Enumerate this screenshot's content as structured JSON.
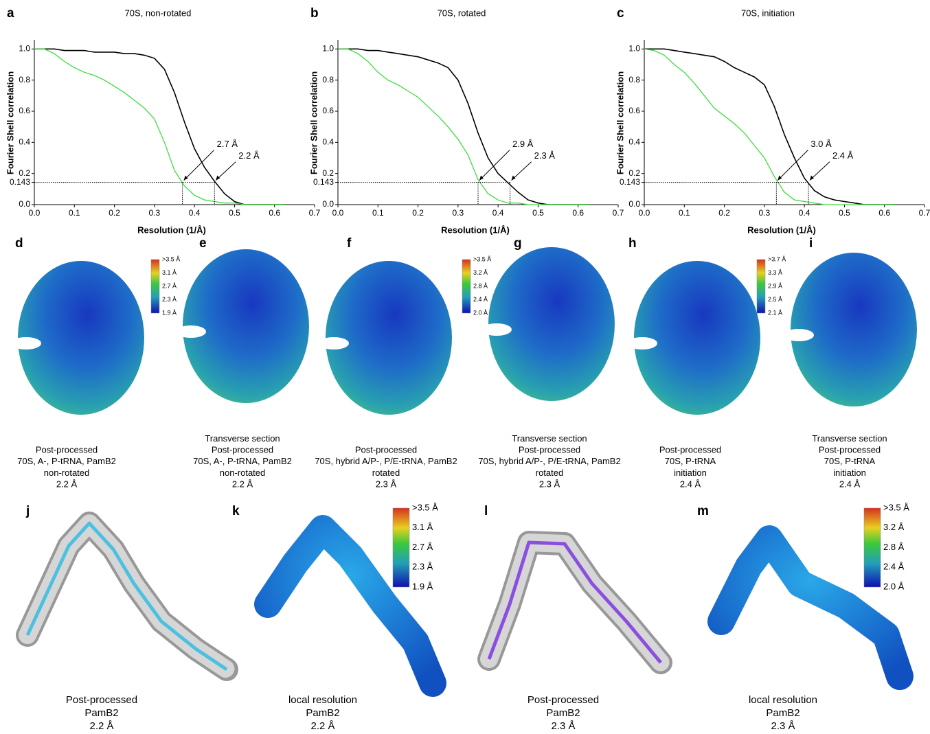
{
  "chart_data": [
    {
      "type": "line",
      "panel": "a",
      "title": "70S, non-rotated",
      "xlabel": "Resolution (1/Å)",
      "ylabel": "Fourier Shell correlation",
      "x": [
        0,
        0.025,
        0.05,
        0.075,
        0.1,
        0.125,
        0.15,
        0.175,
        0.2,
        0.225,
        0.25,
        0.275,
        0.3,
        0.325,
        0.35,
        0.375,
        0.4,
        0.425,
        0.45,
        0.475,
        0.5,
        0.525,
        0.55,
        0.575,
        0.6,
        0.625
      ],
      "series": [
        {
          "color": "#000000",
          "values": [
            1,
            1,
            1,
            0.99,
            0.99,
            0.99,
            0.98,
            0.98,
            0.98,
            0.97,
            0.97,
            0.96,
            0.94,
            0.87,
            0.72,
            0.53,
            0.36,
            0.24,
            0.15,
            0.07,
            0.02,
            0,
            0,
            0,
            0,
            0
          ]
        },
        {
          "color": "#3ddc3d",
          "values": [
            1,
            1,
            0.97,
            0.92,
            0.88,
            0.85,
            0.83,
            0.8,
            0.76,
            0.72,
            0.67,
            0.62,
            0.55,
            0.4,
            0.22,
            0.12,
            0.06,
            0.03,
            0.02,
            0.01,
            0.01,
            0,
            0,
            0,
            0,
            0
          ]
        }
      ],
      "threshold": 0.143,
      "annotations": [
        {
          "text": "2.7 Å",
          "x": 0.37
        },
        {
          "text": "2.2 Å",
          "x": 0.45
        }
      ],
      "xlim": [
        0,
        0.7
      ],
      "ylim": [
        0,
        1.05
      ],
      "xticks": [
        {
          "value": 0,
          "label": "0.0"
        },
        0.1,
        0.2,
        0.3,
        0.4,
        0.5,
        0.6,
        0.7
      ],
      "yticks": [
        {
          "value": 0,
          "label": "0.0"
        },
        0.143,
        0.2,
        0.4,
        0.6,
        0.8,
        {
          "value": 1,
          "label": "1.0"
        }
      ]
    },
    {
      "type": "line",
      "panel": "b",
      "title": "70S, rotated",
      "xlabel": "Resolution (1/Å)",
      "ylabel": "Fourier Shell correlation",
      "x": [
        0,
        0.025,
        0.05,
        0.075,
        0.1,
        0.125,
        0.15,
        0.175,
        0.2,
        0.225,
        0.25,
        0.275,
        0.3,
        0.325,
        0.35,
        0.375,
        0.4,
        0.425,
        0.45,
        0.475,
        0.5,
        0.525,
        0.55,
        0.575,
        0.6,
        0.625
      ],
      "series": [
        {
          "color": "#000000",
          "values": [
            1,
            1,
            1,
            0.99,
            0.99,
            0.98,
            0.97,
            0.96,
            0.95,
            0.93,
            0.91,
            0.88,
            0.8,
            0.65,
            0.46,
            0.3,
            0.2,
            0.14,
            0.08,
            0.03,
            0.01,
            0,
            0,
            0,
            0,
            0
          ]
        },
        {
          "color": "#3ddc3d",
          "values": [
            1,
            1,
            0.97,
            0.92,
            0.85,
            0.8,
            0.77,
            0.73,
            0.69,
            0.63,
            0.57,
            0.5,
            0.42,
            0.32,
            0.16,
            0.07,
            0.03,
            0.01,
            0.01,
            0,
            0,
            0,
            0,
            0,
            0,
            0
          ]
        }
      ],
      "threshold": 0.143,
      "annotations": [
        {
          "text": "2.9 Å",
          "x": 0.35
        },
        {
          "text": "2.3 Å",
          "x": 0.43
        }
      ],
      "xlim": [
        0,
        0.7
      ],
      "ylim": [
        0,
        1.05
      ],
      "xticks": [
        {
          "value": 0,
          "label": "0.0"
        },
        0.1,
        0.2,
        0.3,
        0.4,
        0.5,
        0.6,
        0.7
      ],
      "yticks": [
        {
          "value": 0,
          "label": "0.0"
        },
        0.143,
        0.2,
        0.4,
        0.6,
        0.8,
        {
          "value": 1,
          "label": "1.0"
        }
      ]
    },
    {
      "type": "line",
      "panel": "c",
      "title": "70S, initiation",
      "xlabel": "Resolution (1/Å)",
      "ylabel": "Fourier Shell correlation",
      "x": [
        0,
        0.025,
        0.05,
        0.075,
        0.1,
        0.125,
        0.15,
        0.175,
        0.2,
        0.225,
        0.25,
        0.275,
        0.3,
        0.325,
        0.35,
        0.375,
        0.4,
        0.425,
        0.45,
        0.475,
        0.5,
        0.525,
        0.55,
        0.575,
        0.6,
        0.625
      ],
      "series": [
        {
          "color": "#000000",
          "values": [
            1,
            1,
            1,
            0.99,
            0.98,
            0.97,
            0.96,
            0.95,
            0.92,
            0.88,
            0.85,
            0.82,
            0.77,
            0.63,
            0.45,
            0.3,
            0.17,
            0.09,
            0.05,
            0.03,
            0.02,
            0.01,
            0,
            0,
            0,
            0
          ]
        },
        {
          "color": "#3ddc3d",
          "values": [
            1,
            0.99,
            0.96,
            0.9,
            0.85,
            0.78,
            0.7,
            0.62,
            0.57,
            0.52,
            0.46,
            0.38,
            0.3,
            0.18,
            0.08,
            0.03,
            0.02,
            0.01,
            0,
            0,
            0,
            0,
            0,
            0,
            0,
            0
          ]
        }
      ],
      "threshold": 0.143,
      "annotations": [
        {
          "text": "3.0 Å",
          "x": 0.33
        },
        {
          "text": "2.4 Å",
          "x": 0.41
        }
      ],
      "xlim": [
        0,
        0.7
      ],
      "ylim": [
        0,
        1.05
      ],
      "xticks": [
        {
          "value": 0,
          "label": "0.0"
        },
        0.1,
        0.2,
        0.3,
        0.4,
        0.5,
        0.6,
        0.7
      ],
      "yticks": [
        {
          "value": 0,
          "label": "0.0"
        },
        0.143,
        0.2,
        0.4,
        0.6,
        0.8,
        {
          "value": 1,
          "label": "1.0"
        }
      ]
    }
  ],
  "panels": [
    {
      "letter": "d",
      "caption": [
        "Post-processed",
        "70S, A-, P-tRNA, PamB2",
        "non-rotated",
        "2.2 Å"
      ],
      "colorbar": [
        ">3.5 Å",
        "3.1 Å",
        "2.7 Å",
        "2.3 Å",
        "1.9 Å"
      ]
    },
    {
      "letter": "e",
      "caption": [
        "Transverse section",
        "Post-processed",
        "70S, A-, P-tRNA, PamB2",
        "non-rotated",
        "2.2 Å"
      ]
    },
    {
      "letter": "f",
      "caption": [
        "Post-processed",
        "70S, hybrid A/P-, P/E-tRNA, PamB2",
        "rotated",
        "2.3 Å"
      ],
      "colorbar": [
        ">3.5 Å",
        "3.2 Å",
        "2.8 Å",
        "2.4 Å",
        "2.0 Å"
      ]
    },
    {
      "letter": "g",
      "caption": [
        "Transverse section",
        "Post-processed",
        "70S, hybrid A/P-, P/E-tRNA, PamB2",
        "rotated",
        "2.3 Å"
      ]
    },
    {
      "letter": "h",
      "caption": [
        "Post-processed",
        "70S, P-tRNA",
        "initiation",
        "2.4 Å"
      ],
      "colorbar": [
        ">3.7 Å",
        "3.3 Å",
        "2.9 Å",
        "2.5 Å",
        "2.1 Å"
      ]
    },
    {
      "letter": "i",
      "caption": [
        "Transverse section",
        "Post-processed",
        "70S, P-tRNA",
        "initiation",
        "2.4 Å"
      ]
    },
    {
      "letter": "j",
      "caption": [
        "Post-processed",
        "PamB2",
        "2.2 Å"
      ]
    },
    {
      "letter": "k",
      "caption": [
        "local resolution",
        "PamB2",
        "2.2 Å"
      ],
      "colorbar": [
        ">3.5 Å",
        "3.1 Å",
        "2.7 Å",
        "2.3 Å",
        "1.9 Å"
      ]
    },
    {
      "letter": "l",
      "caption": [
        "Post-processed",
        "PamB2",
        "2.3 Å"
      ]
    },
    {
      "letter": "m",
      "caption": [
        "local resolution",
        "PamB2",
        "2.3 Å"
      ],
      "colorbar": [
        ">3.5 Å",
        "3.2 Å",
        "2.8 Å",
        "2.4 Å",
        "2.0 Å"
      ]
    }
  ]
}
